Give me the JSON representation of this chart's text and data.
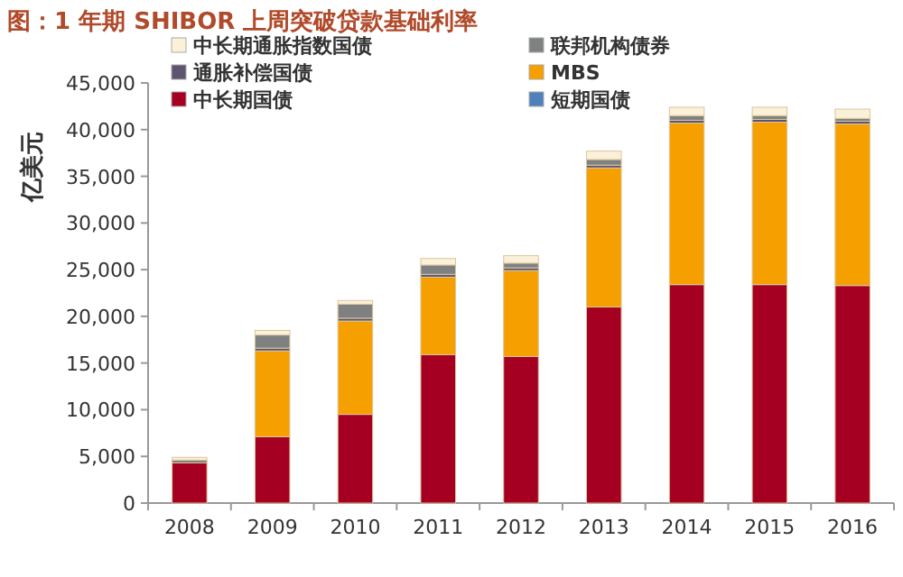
{
  "chart_data": {
    "type": "bar",
    "title": "图：1 年期 SHIBOR 上周突破贷款基础利率",
    "ylabel": "亿美元",
    "categories": [
      "2008",
      "2009",
      "2010",
      "2011",
      "2012",
      "2013",
      "2014",
      "2015",
      "2016"
    ],
    "stacked": true,
    "legend": "top",
    "grid": false,
    "ylim": [
      0,
      45000
    ],
    "yticks": [
      0,
      {
        "value": 5000,
        "label": "5,000"
      },
      {
        "value": 10000,
        "label": "10,000"
      },
      {
        "value": 15000,
        "label": "15,000"
      },
      {
        "value": 20000,
        "label": "20,000"
      },
      {
        "value": 25000,
        "label": "25,000"
      },
      {
        "value": 30000,
        "label": "30,000"
      },
      {
        "value": 35000,
        "label": "35,000"
      },
      {
        "value": 40000,
        "label": "40,000"
      },
      {
        "value": 45000,
        "label": "45,000"
      }
    ],
    "series": [
      {
        "name": "短期国债",
        "color": "#4f81bd",
        "values": [
          0,
          0,
          0,
          0,
          0,
          0,
          0,
          0,
          0
        ]
      },
      {
        "name": "中长期国债",
        "color": "#a50021",
        "values": [
          4300,
          7100,
          9500,
          15900,
          15700,
          21000,
          23400,
          23400,
          23300
        ]
      },
      {
        "name": "MBS",
        "color": "#f5a000",
        "values": [
          0,
          9200,
          10000,
          8300,
          9200,
          14900,
          17300,
          17400,
          17300
        ]
      },
      {
        "name": "通胀补偿国债",
        "color": "#5f5470",
        "values": [
          null,
          300,
          300,
          300,
          300,
          300,
          300,
          300,
          300
        ]
      },
      {
        "name": "联邦机构债券",
        "color": "#7f8080",
        "values": [
          300,
          1400,
          1500,
          1000,
          500,
          600,
          500,
          400,
          300
        ]
      },
      {
        "name": "中长期通胀指数国债",
        "color": "#fbf0d8",
        "values": [
          300,
          500,
          400,
          700,
          800,
          900,
          900,
          900,
          1000
        ]
      }
    ]
  }
}
